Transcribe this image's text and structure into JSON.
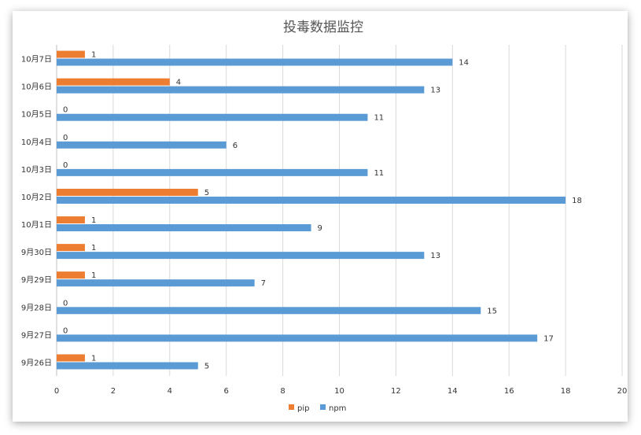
{
  "chart_data": {
    "type": "bar",
    "orientation": "horizontal",
    "title": "投毒数据监控",
    "categories": [
      "10月7日",
      "10月6日",
      "10月5日",
      "10月4日",
      "10月3日",
      "10月2日",
      "10月1日",
      "9月30日",
      "9月29日",
      "9月28日",
      "9月27日",
      "9月26日"
    ],
    "series": [
      {
        "name": "pip",
        "color": "#ED7D31",
        "values": [
          1,
          4,
          0,
          0,
          0,
          5,
          1,
          1,
          1,
          0,
          0,
          1
        ]
      },
      {
        "name": "npm",
        "color": "#5B9BD5",
        "values": [
          14,
          13,
          11,
          6,
          11,
          18,
          9,
          13,
          7,
          15,
          17,
          5
        ]
      }
    ],
    "xlim": [
      0,
      20
    ],
    "x_ticks": [
      "0",
      "2",
      "4",
      "6",
      "8",
      "10",
      "12",
      "14",
      "16",
      "18",
      "20"
    ],
    "grid": true,
    "legend": "bottom",
    "data_labels": true
  }
}
